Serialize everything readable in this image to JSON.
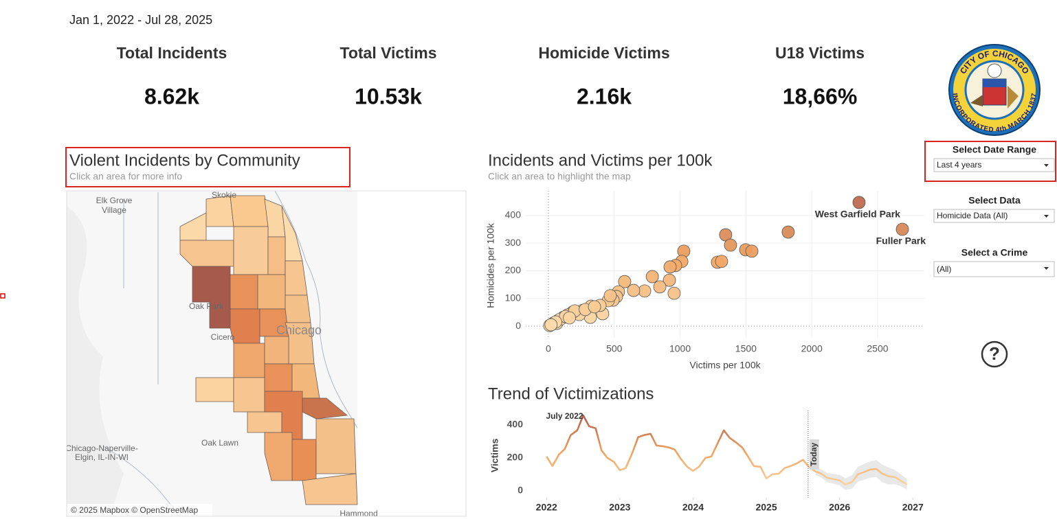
{
  "header": {
    "date_range": "Jan 1, 2022 - Jul 28, 2025"
  },
  "kpis": [
    {
      "label": "Total Incidents",
      "value": "8.62k"
    },
    {
      "label": "Total Victims",
      "value": "10.53k"
    },
    {
      "label": "Homicide Victims",
      "value": "2.16k"
    },
    {
      "label": "U18 Victims",
      "value": "18,66%"
    }
  ],
  "logo": {
    "top_text": "CITY OF CHICAGO",
    "bottom_text": "INCORPORATED 4th MARCH 1837"
  },
  "map": {
    "title": "Violent Incidents by Community",
    "subtitle": "Click an area for more info",
    "place_labels": [
      "Elk Grove",
      "Village",
      "Skokie",
      "Oak Park",
      "Cicero",
      "Chicago",
      "Oak Lawn",
      "Chicago-Naperville-",
      "Elgin, IL-IN-WI",
      "Hammond"
    ],
    "attribution": "© 2025 Mapbox © OpenStreetMap"
  },
  "controls": [
    {
      "label": "Select Date Range",
      "value": "Last 4 years"
    },
    {
      "label": "Select Data",
      "value": "Homicide Data (All)"
    },
    {
      "label": "Select a Crime",
      "value": "(All)"
    }
  ],
  "help": "?",
  "chart_data": [
    {
      "type": "scatter",
      "title": "Incidents and Victims per 100k",
      "subtitle": "Click an area to highlight the map",
      "x_label": "Victims per 100k",
      "y_label": "Homicides per 100k",
      "x": [
        2359,
        2688,
        1821,
        1346,
        1383,
        1498,
        1545,
        1284,
        1315,
        1028,
        1013,
        966,
        924,
        919,
        955,
        846,
        789,
        731,
        647,
        579,
        532,
        517,
        491,
        454,
        412,
        392,
        324,
        319,
        261,
        235,
        183,
        146,
        115,
        73,
        42,
        10,
        26,
        63,
        90,
        130,
        200,
        160,
        280,
        350,
        470,
        55,
        20
      ],
      "values": [
        447,
        350,
        340,
        330,
        293,
        276,
        271,
        231,
        234,
        271,
        234,
        219,
        214,
        166,
        119,
        142,
        179,
        127,
        129,
        161,
        124,
        107,
        94,
        92,
        45,
        75,
        72,
        32,
        57,
        42,
        50,
        40,
        32,
        20,
        12,
        2,
        7,
        10,
        25,
        35,
        55,
        30,
        60,
        70,
        110,
        15,
        5
      ],
      "point_labels": [
        "West Garfield Park",
        "Fuller Park",
        null,
        null,
        null,
        null,
        null,
        null,
        null,
        null,
        null,
        null,
        null,
        null,
        null,
        null,
        null,
        null,
        null,
        null,
        null,
        null,
        null,
        null,
        null,
        null,
        null,
        null,
        null,
        null,
        null,
        null,
        null,
        null,
        null,
        null,
        null,
        null,
        null,
        null,
        null,
        null,
        null,
        null,
        null,
        null,
        null
      ],
      "xlim": [
        -172,
        2855
      ],
      "ylim": [
        -42,
        489
      ],
      "xticks": [
        0,
        500,
        1000,
        1500,
        2000,
        2500
      ],
      "yticks": [
        0,
        100,
        200,
        300,
        400
      ],
      "grid": true,
      "color_scale": [
        "#fcdcab",
        "#f0a562",
        "#b4604c"
      ]
    },
    {
      "type": "line",
      "title": "Trend of Victimizations",
      "y_label": "Victims",
      "x": [
        2022,
        2022.08,
        2022.17,
        2022.25,
        2022.33,
        2022.42,
        2022.5,
        2022.58,
        2022.67,
        2022.75,
        2022.83,
        2022.92,
        2023,
        2023.08,
        2023.17,
        2023.25,
        2023.33,
        2023.42,
        2023.5,
        2023.58,
        2023.67,
        2023.75,
        2023.83,
        2023.92,
        2024,
        2024.08,
        2024.17,
        2024.25,
        2024.33,
        2024.42,
        2024.5,
        2024.58,
        2024.67,
        2024.75,
        2024.83,
        2024.92,
        2025,
        2025.08,
        2025.17,
        2025.25,
        2025.33,
        2025.42,
        2025.5,
        2025.58,
        2025.67,
        2025.75,
        2025.83,
        2025.92,
        2026,
        2026.08,
        2026.17,
        2026.25,
        2026.33,
        2026.42,
        2026.5,
        2026.58,
        2026.67,
        2026.75,
        2026.83,
        2026.92
      ],
      "values": [
        208,
        150,
        221,
        254,
        338,
        367,
        458,
        392,
        379,
        246,
        200,
        175,
        125,
        138,
        229,
        325,
        338,
        346,
        275,
        271,
        263,
        250,
        196,
        146,
        121,
        146,
        200,
        208,
        283,
        367,
        321,
        296,
        263,
        208,
        150,
        146,
        75,
        100,
        104,
        138,
        150,
        167,
        188,
        146,
        117,
        104,
        79,
        71,
        63,
        38,
        54,
        100,
        113,
        129,
        133,
        104,
        88,
        83,
        63,
        38
      ],
      "band_lower": [
        null,
        null,
        null,
        null,
        null,
        null,
        null,
        null,
        null,
        null,
        null,
        null,
        null,
        null,
        null,
        null,
        null,
        null,
        null,
        null,
        null,
        null,
        null,
        null,
        null,
        null,
        null,
        null,
        null,
        null,
        null,
        null,
        null,
        null,
        null,
        null,
        null,
        null,
        null,
        null,
        null,
        null,
        null,
        null,
        95,
        80,
        52,
        42,
        32,
        5,
        14,
        56,
        66,
        80,
        84,
        52,
        38,
        40,
        28,
        8
      ],
      "band_upper": [
        null,
        null,
        null,
        null,
        null,
        null,
        null,
        null,
        null,
        null,
        null,
        null,
        null,
        null,
        null,
        null,
        null,
        null,
        null,
        null,
        null,
        null,
        null,
        null,
        null,
        null,
        null,
        null,
        null,
        null,
        null,
        null,
        null,
        null,
        null,
        null,
        null,
        null,
        null,
        null,
        null,
        null,
        null,
        null,
        140,
        130,
        108,
        102,
        96,
        76,
        96,
        146,
        162,
        180,
        186,
        160,
        140,
        128,
        102,
        72
      ],
      "annotations": [
        {
          "x": 2022.5,
          "label": "July 2022"
        },
        {
          "x": 2025.57,
          "label": "Today"
        }
      ],
      "xlim": [
        2021.81,
        2027.11
      ],
      "ylim": [
        -42,
        487
      ],
      "xticks": [
        2022,
        2023,
        2024,
        2025,
        2026,
        2027
      ],
      "yticks": [
        0,
        200,
        400
      ],
      "grid": false,
      "color_scale": [
        "#fcdcab",
        "#f0a562",
        "#b4604c"
      ]
    }
  ]
}
